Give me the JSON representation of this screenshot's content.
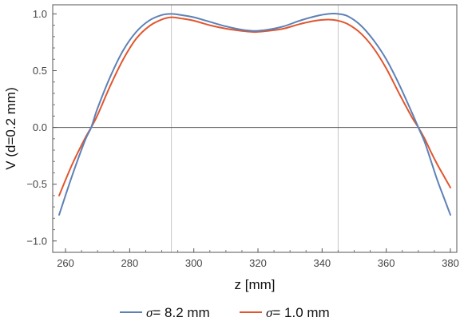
{
  "chart_data": {
    "type": "line",
    "xlabel": "z [mm]",
    "ylabel": "V (d=0.2 mm)",
    "xlim": [
      256,
      382
    ],
    "ylim": [
      -1.1,
      1.08
    ],
    "xticks": [
      260,
      280,
      300,
      320,
      340,
      360,
      380
    ],
    "yticks": [
      -1.0,
      -0.5,
      0.0,
      0.5,
      1.0
    ],
    "ytick_labels": [
      "−1.0",
      "−0.5",
      "0.0",
      "0.5",
      "1.0"
    ],
    "gridlines_x": [
      293,
      345
    ],
    "zero_line": 0,
    "legend_position": "bottom-center",
    "series": [
      {
        "name_symbol": "σ",
        "name_text": "= 8.2 mm",
        "color": "#5E81B5",
        "x": [
          258,
          262,
          266,
          268,
          270,
          274,
          278,
          282,
          286,
          290,
          293,
          296,
          300,
          305,
          310,
          315,
          319,
          323,
          328,
          333,
          338,
          342,
          345,
          348,
          352,
          356,
          360,
          364,
          368,
          370,
          372,
          374,
          376,
          378,
          380
        ],
        "y": [
          -0.77,
          -0.43,
          -0.12,
          0.0,
          0.17,
          0.45,
          0.68,
          0.84,
          0.94,
          0.99,
          1.0,
          0.99,
          0.97,
          0.93,
          0.89,
          0.86,
          0.85,
          0.86,
          0.89,
          0.94,
          0.98,
          1.0,
          1.0,
          0.98,
          0.9,
          0.77,
          0.6,
          0.38,
          0.13,
          0.0,
          -0.13,
          -0.3,
          -0.47,
          -0.62,
          -0.77
        ]
      },
      {
        "name_symbol": "σ",
        "name_text": "= 1.0 mm",
        "color": "#E0562F",
        "x": [
          258,
          262,
          266,
          268,
          270,
          274,
          278,
          282,
          286,
          290,
          293,
          296,
          300,
          305,
          310,
          315,
          319,
          323,
          328,
          333,
          338,
          342,
          345,
          348,
          352,
          356,
          360,
          364,
          368,
          370,
          372,
          374,
          376,
          378,
          380
        ],
        "y": [
          -0.6,
          -0.33,
          -0.1,
          0.0,
          0.11,
          0.37,
          0.6,
          0.78,
          0.89,
          0.95,
          0.97,
          0.96,
          0.94,
          0.9,
          0.87,
          0.85,
          0.84,
          0.85,
          0.87,
          0.91,
          0.94,
          0.95,
          0.94,
          0.91,
          0.83,
          0.7,
          0.52,
          0.3,
          0.09,
          0.0,
          -0.1,
          -0.22,
          -0.33,
          -0.43,
          -0.53
        ]
      }
    ]
  }
}
